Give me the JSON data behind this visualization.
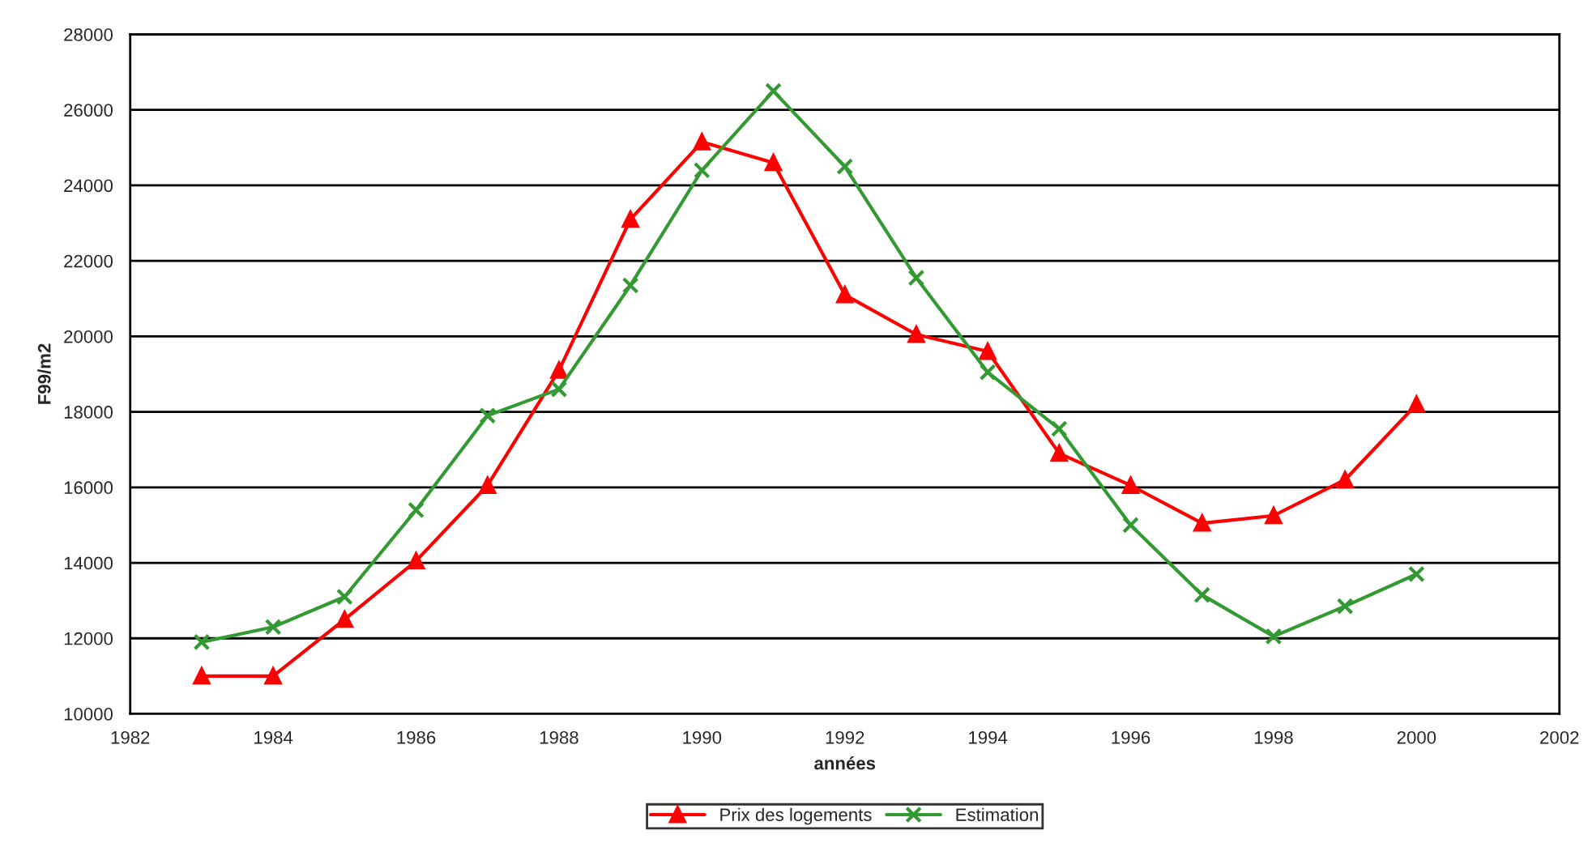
{
  "chart_data": {
    "type": "line",
    "xlabel": "années",
    "ylabel": "F99/m2",
    "x": [
      1983,
      1984,
      1985,
      1986,
      1987,
      1988,
      1989,
      1990,
      1991,
      1992,
      1993,
      1994,
      1995,
      1996,
      1997,
      1998,
      1999,
      2000
    ],
    "series": [
      {
        "name": "Prix des logements",
        "color": "#ff0000",
        "marker": "triangle",
        "values": [
          11000,
          11000,
          12500,
          14050,
          16050,
          19100,
          23100,
          25150,
          24600,
          21100,
          20050,
          19600,
          16900,
          16050,
          15050,
          15250,
          16200,
          18200
        ]
      },
      {
        "name": "Estimation",
        "color": "#339933",
        "marker": "cross",
        "values": [
          11900,
          12300,
          13100,
          15400,
          17900,
          18600,
          21350,
          24400,
          26500,
          24500,
          21550,
          19050,
          17550,
          15000,
          13150,
          12050,
          12850,
          13700
        ]
      }
    ],
    "xlim": [
      1982,
      2002
    ],
    "xticks": [
      1982,
      1984,
      1986,
      1988,
      1990,
      1992,
      1994,
      1996,
      1998,
      2000,
      2002
    ],
    "ylim": [
      10000,
      28000
    ],
    "yticks": [
      10000,
      12000,
      14000,
      16000,
      18000,
      20000,
      22000,
      24000,
      26000,
      28000
    ],
    "grid": "y",
    "legend": "bottom",
    "line_style": "solid"
  }
}
